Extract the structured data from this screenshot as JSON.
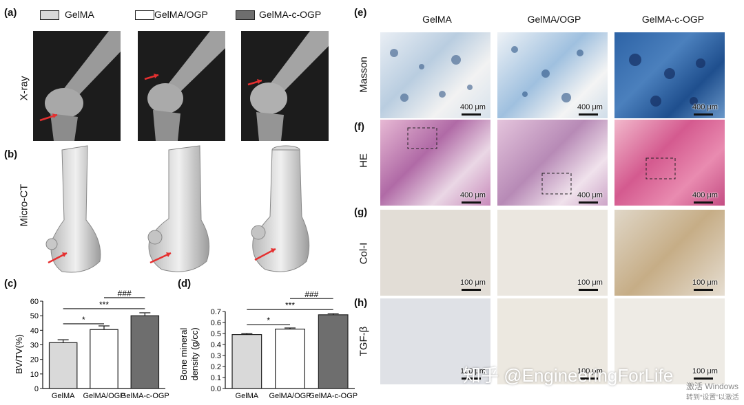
{
  "panels": {
    "a": "(a)",
    "b": "(b)",
    "c": "(c)",
    "d": "(d)",
    "e": "(e)",
    "f": "(f)",
    "g": "(g)",
    "h": "(h)"
  },
  "legend": [
    "GelMA",
    "GelMA/OGP",
    "GelMA-c-OGP"
  ],
  "left_rows": {
    "xray": "X-ray",
    "microct": "Micro-CT"
  },
  "histology": {
    "columns": [
      "GelMA",
      "GelMA/OGP",
      "GelMA-c-OGP"
    ],
    "rows": [
      "Masson",
      "HE",
      "Col-I",
      "TGF-β"
    ],
    "scale_large": "400 μm",
    "scale_small": "100 μm"
  },
  "colors": {
    "gelma": "#d9d9d9",
    "ogp": "#ffffff",
    "cogp": "#6e6e6e",
    "masson": "#2f6fb0",
    "he": "#c4427e",
    "ihc": "#d8cfc2"
  },
  "chart_data": [
    {
      "type": "bar",
      "categories": [
        "GelMA",
        "GelMA/OGP",
        "GelMA-c-OGP"
      ],
      "values": [
        31.5,
        40.5,
        50
      ],
      "errors": [
        2,
        2.5,
        2
      ],
      "ylabel": "BV/TV(%)",
      "ylim": [
        0,
        60
      ],
      "yticks": [
        "0",
        "10",
        "20",
        "30",
        "40",
        "50",
        "60"
      ],
      "annotations": [
        "*",
        "***",
        "###"
      ]
    },
    {
      "type": "bar",
      "categories": [
        "GelMA",
        "GelMA/OGP",
        "GelMA-c-OGP"
      ],
      "values": [
        0.49,
        0.54,
        0.67
      ],
      "errors": [
        0.01,
        0.01,
        0.01
      ],
      "ylabel": "Bone mineral density (g/cc)",
      "ylim": [
        0,
        0.7
      ],
      "yticks": [
        "0.0",
        "0.1",
        "0.2",
        "0.3",
        "0.4",
        "0.5",
        "0.6",
        "0.7"
      ],
      "annotations": [
        "*",
        "***",
        "###"
      ]
    }
  ],
  "watermark": {
    "text": "知乎 @EngineeringForLife",
    "windows_line1": "激活 Windows",
    "windows_line2": "转到“设置”以激活"
  }
}
